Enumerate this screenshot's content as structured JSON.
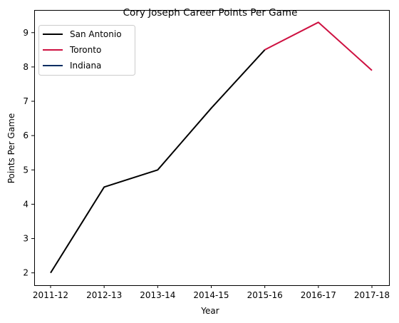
{
  "chart_data": {
    "type": "line",
    "title": "Cory Joseph Career Points Per Game",
    "xlabel": "Year",
    "ylabel": "Points Per Game",
    "categories": [
      "2011-12",
      "2012-13",
      "2013-14",
      "2014-15",
      "2015-16",
      "2016-17",
      "2017-18"
    ],
    "ylim": [
      1.64,
      9.66
    ],
    "yticks": [
      2,
      3,
      4,
      5,
      6,
      7,
      8,
      9
    ],
    "grid": false,
    "legend_position": "top-left",
    "series": [
      {
        "name": "San Antonio",
        "color": "#000000",
        "values": [
          2.0,
          4.5,
          5.0,
          6.8,
          8.5,
          null,
          null
        ]
      },
      {
        "name": "Toronto",
        "color": "#CE1141",
        "values": [
          null,
          null,
          null,
          null,
          8.5,
          9.3,
          7.9
        ]
      },
      {
        "name": "Indiana",
        "color": "#002D62",
        "values": [
          null,
          null,
          null,
          null,
          null,
          null,
          null
        ]
      }
    ]
  }
}
